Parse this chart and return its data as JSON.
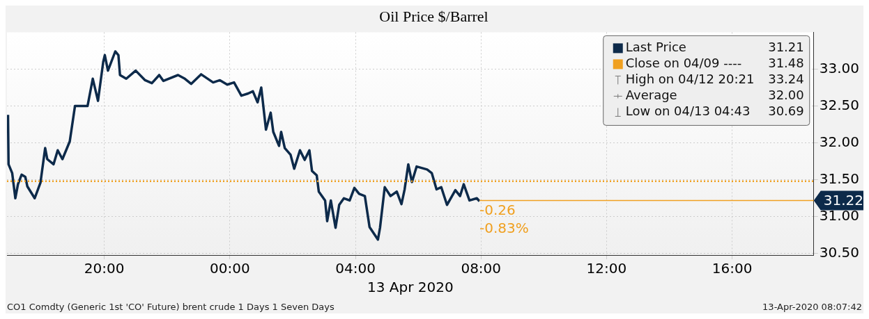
{
  "chart_data": {
    "type": "line",
    "title": "Oil Price $/Barrel",
    "xlabel": "13 Apr 2020",
    "series": [
      {
        "name": "Last Price",
        "color": "#0d2a4a",
        "x": [
          "2020-04-12T16:56",
          "2020-04-12T16:57",
          "2020-04-12T17:04",
          "2020-04-12T17:10",
          "2020-04-12T17:15",
          "2020-04-12T17:22",
          "2020-04-12T17:29",
          "2020-04-12T17:33",
          "2020-04-12T17:47",
          "2020-04-12T17:58",
          "2020-04-12T18:07",
          "2020-04-12T18:11",
          "2020-04-12T18:23",
          "2020-04-12T18:31",
          "2020-04-12T18:40",
          "2020-04-12T18:54",
          "2020-04-12T19:04",
          "2020-04-12T19:28",
          "2020-04-12T19:38",
          "2020-04-12T19:48",
          "2020-04-12T19:58",
          "2020-04-12T20:01",
          "2020-04-12T20:07",
          "2020-04-12T20:21",
          "2020-04-12T20:27",
          "2020-04-12T20:30",
          "2020-04-12T20:42",
          "2020-04-12T21:00",
          "2020-04-12T21:18",
          "2020-04-12T21:31",
          "2020-04-12T21:45",
          "2020-04-12T21:53",
          "2020-04-12T22:21",
          "2020-04-12T22:34",
          "2020-04-12T22:46",
          "2020-04-12T23:05",
          "2020-04-12T23:28",
          "2020-04-12T23:41",
          "2020-04-12T23:55",
          "2020-04-13T00:08",
          "2020-04-13T00:22",
          "2020-04-13T00:35",
          "2020-04-13T00:44",
          "2020-04-13T00:53",
          "2020-04-13T01:00",
          "2020-04-13T01:09",
          "2020-04-13T01:18",
          "2020-04-13T01:23",
          "2020-04-13T01:34",
          "2020-04-13T01:38",
          "2020-04-13T01:45",
          "2020-04-13T01:56",
          "2020-04-13T02:03",
          "2020-04-13T02:14",
          "2020-04-13T02:23",
          "2020-04-13T02:32",
          "2020-04-13T02:37",
          "2020-04-13T02:46",
          "2020-04-13T02:50",
          "2020-04-13T03:02",
          "2020-04-13T03:06",
          "2020-04-13T03:13",
          "2020-04-13T03:22",
          "2020-04-13T03:29",
          "2020-04-13T03:38",
          "2020-04-13T03:49",
          "2020-04-13T03:58",
          "2020-04-13T04:07",
          "2020-04-13T04:18",
          "2020-04-13T04:27",
          "2020-04-13T04:43",
          "2020-04-13T04:47",
          "2020-04-13T04:56",
          "2020-04-13T05:07",
          "2020-04-13T05:19",
          "2020-04-13T05:28",
          "2020-04-13T05:34",
          "2020-04-13T05:41",
          "2020-04-13T05:48",
          "2020-04-13T05:57",
          "2020-04-13T06:17",
          "2020-04-13T06:26",
          "2020-04-13T06:35",
          "2020-04-13T06:44",
          "2020-04-13T06:55",
          "2020-04-13T07:11",
          "2020-04-13T07:20",
          "2020-04-13T07:27",
          "2020-04-13T07:38",
          "2020-04-13T07:52",
          "2020-04-13T07:57"
        ],
        "values": [
          32.38,
          31.71,
          31.59,
          31.25,
          31.44,
          31.57,
          31.54,
          31.41,
          31.25,
          31.46,
          31.93,
          31.78,
          31.71,
          31.9,
          31.78,
          32.02,
          32.5,
          32.5,
          32.87,
          32.57,
          33.1,
          33.19,
          32.98,
          33.24,
          33.19,
          32.92,
          32.87,
          32.98,
          32.85,
          32.81,
          32.92,
          32.84,
          32.92,
          32.87,
          32.8,
          32.93,
          32.82,
          32.85,
          32.79,
          32.82,
          32.64,
          32.67,
          32.7,
          32.55,
          32.75,
          32.18,
          32.41,
          32.15,
          31.96,
          32.15,
          31.93,
          31.84,
          31.65,
          31.9,
          31.77,
          31.9,
          31.62,
          31.56,
          31.34,
          31.22,
          30.94,
          31.22,
          30.85,
          31.16,
          31.25,
          31.22,
          31.39,
          31.31,
          31.28,
          30.86,
          30.69,
          30.85,
          31.4,
          31.28,
          31.34,
          31.17,
          31.37,
          31.71,
          31.47,
          31.68,
          31.64,
          31.59,
          31.37,
          31.4,
          31.16,
          31.36,
          31.28,
          31.44,
          31.22,
          31.25,
          31.21
        ]
      }
    ],
    "xlim": [
      "2020-04-12T16:54",
      "2020-04-13T18:36"
    ],
    "xticks": [
      {
        "value": "2020-04-12T20:00",
        "label": "20:00"
      },
      {
        "value": "2020-04-13T00:00",
        "label": "00:00"
      },
      {
        "value": "2020-04-13T04:00",
        "label": "04:00"
      },
      {
        "value": "2020-04-13T08:00",
        "label": "08:00"
      },
      {
        "value": "2020-04-13T12:00",
        "label": "12:00"
      },
      {
        "value": "2020-04-13T16:00",
        "label": "16:00"
      }
    ],
    "ylim": [
      30.48,
      33.5
    ],
    "yticks": [
      {
        "value": 30.5,
        "label": "30.50"
      },
      {
        "value": 31,
        "label": "31.00"
      },
      {
        "value": 31.5,
        "label": "31.50"
      },
      {
        "value": 32,
        "label": "32.00"
      },
      {
        "value": 32.5,
        "label": "32.50"
      },
      {
        "value": 33,
        "label": "33.00"
      }
    ],
    "ref_lines": [
      {
        "axis": "y",
        "value": 31.48,
        "label": "Close on 04/09 ----",
        "color": "#f0a020",
        "line_style": "dotted"
      },
      {
        "axis": "y",
        "value": 31.22,
        "label": "31.22",
        "color": "#f0a020",
        "line_style": "solid"
      }
    ],
    "annotations": [
      "31.21",
      "31.48",
      "High on 04/12 20:21",
      "33.24",
      "Average",
      "32.00",
      "Low on 04/13 04:43",
      "30.69",
      "-0.26",
      "-0.83%",
      "CO1 Comdty (Generic 1st 'CO' Future) brent crude 1 Days 1 Seven Days",
      "13-Apr-2020 08:07:42"
    ],
    "grid": true,
    "legend": "top right",
    "marker": "none",
    "line_style": "solid"
  }
}
